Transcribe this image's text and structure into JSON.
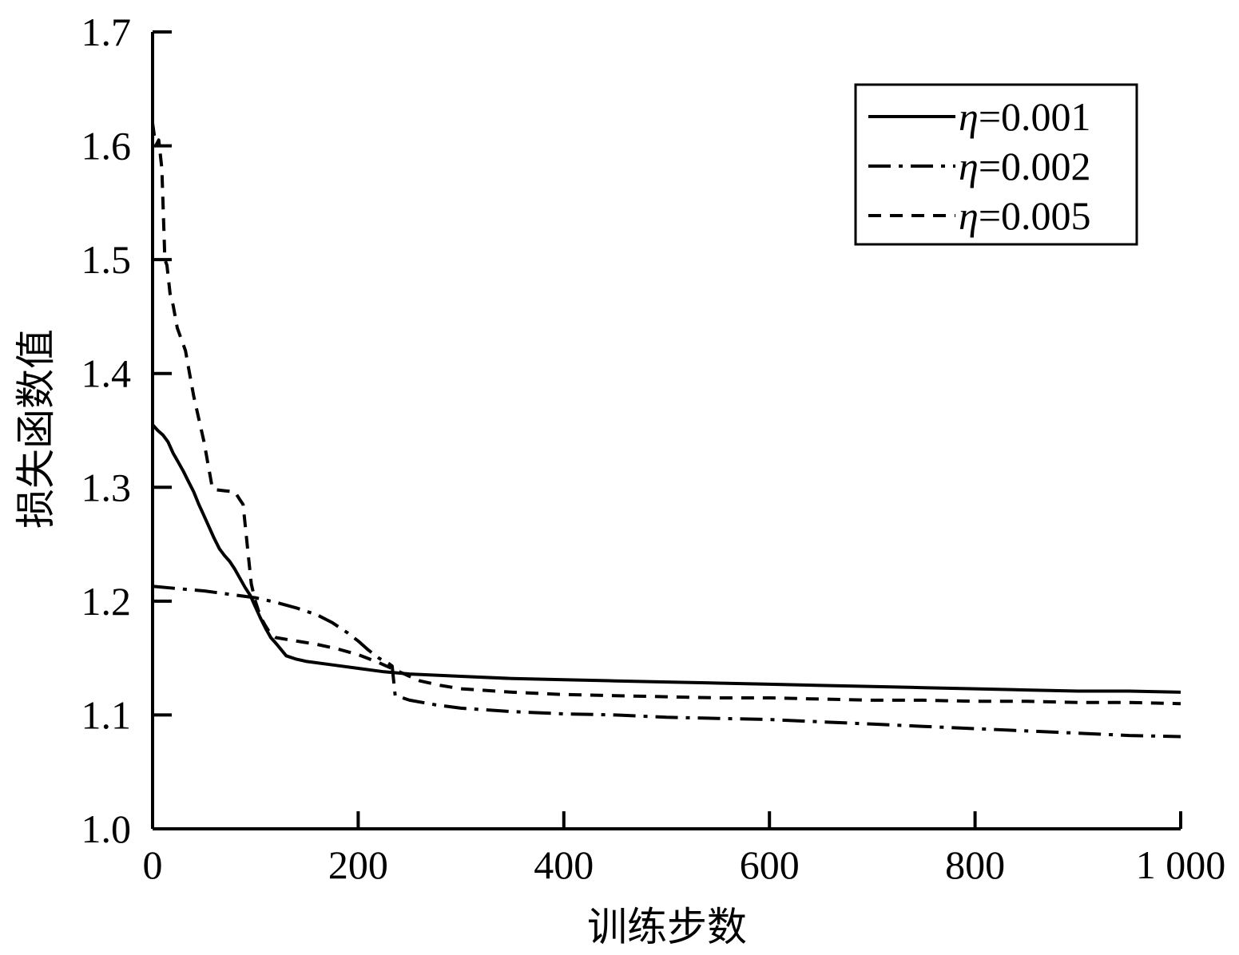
{
  "chart_data": {
    "type": "line",
    "xlabel": "训练步数",
    "ylabel": "损失函数值",
    "xlim": [
      0,
      1000
    ],
    "ylim": [
      1.0,
      1.7
    ],
    "xticks": [
      0,
      200,
      400,
      600,
      800,
      1000
    ],
    "xtick_labels": [
      "0",
      "200",
      "400",
      "600",
      "800",
      "1 000"
    ],
    "yticks": [
      1.0,
      1.1,
      1.2,
      1.3,
      1.4,
      1.5,
      1.6,
      1.7
    ],
    "ytick_labels": [
      "1.0",
      "1.1",
      "1.2",
      "1.3",
      "1.4",
      "1.5",
      "1.6",
      "1.7"
    ],
    "grid": false,
    "legend_position": "top-right",
    "series": [
      {
        "name": "η=0.001",
        "symbol": "η",
        "value_label": "=0.001",
        "dash": "solid",
        "x": [
          0,
          5,
          10,
          15,
          20,
          25,
          30,
          35,
          40,
          45,
          50,
          55,
          60,
          65,
          70,
          75,
          80,
          85,
          90,
          95,
          100,
          105,
          110,
          115,
          120,
          130,
          140,
          150,
          175,
          200,
          225,
          250,
          300,
          350,
          400,
          450,
          500,
          550,
          600,
          650,
          700,
          750,
          800,
          850,
          900,
          950,
          1000
        ],
        "y": [
          1.355,
          1.35,
          1.346,
          1.34,
          1.33,
          1.322,
          1.314,
          1.305,
          1.296,
          1.285,
          1.275,
          1.265,
          1.255,
          1.246,
          1.24,
          1.235,
          1.228,
          1.22,
          1.212,
          1.205,
          1.195,
          1.185,
          1.176,
          1.168,
          1.163,
          1.152,
          1.149,
          1.147,
          1.144,
          1.141,
          1.138,
          1.136,
          1.134,
          1.132,
          1.131,
          1.13,
          1.129,
          1.128,
          1.127,
          1.126,
          1.125,
          1.124,
          1.123,
          1.122,
          1.121,
          1.121,
          1.12
        ]
      },
      {
        "name": "η=0.002",
        "symbol": "η",
        "value_label": "=0.002",
        "dash": "dashdot",
        "x": [
          0,
          25,
          50,
          75,
          100,
          120,
          140,
          160,
          175,
          190,
          200,
          210,
          220,
          230,
          233,
          236,
          240,
          250,
          275,
          300,
          350,
          400,
          450,
          500,
          550,
          600,
          650,
          700,
          750,
          800,
          850,
          900,
          950,
          1000
        ],
        "y": [
          1.213,
          1.211,
          1.209,
          1.206,
          1.203,
          1.199,
          1.194,
          1.188,
          1.181,
          1.172,
          1.165,
          1.157,
          1.15,
          1.145,
          1.143,
          1.117,
          1.116,
          1.113,
          1.109,
          1.106,
          1.103,
          1.101,
          1.1,
          1.098,
          1.097,
          1.096,
          1.094,
          1.092,
          1.09,
          1.088,
          1.086,
          1.084,
          1.082,
          1.081
        ]
      },
      {
        "name": "η=0.005",
        "symbol": "η",
        "value_label": "=0.005",
        "dash": "dashed",
        "x": [
          0,
          3,
          6,
          9,
          12,
          14,
          17,
          20,
          24,
          28,
          32,
          36,
          40,
          45,
          50,
          54,
          56,
          58,
          60,
          70,
          80,
          85,
          88,
          92,
          96,
          100,
          105,
          110,
          115,
          120,
          140,
          160,
          180,
          200,
          220,
          240,
          260,
          280,
          300,
          350,
          400,
          450,
          500,
          550,
          600,
          650,
          700,
          750,
          800,
          850,
          900,
          950,
          1000
        ],
        "y": [
          1.62,
          1.6,
          1.605,
          1.58,
          1.5,
          1.495,
          1.47,
          1.46,
          1.44,
          1.43,
          1.42,
          1.4,
          1.38,
          1.36,
          1.34,
          1.32,
          1.31,
          1.3,
          1.298,
          1.297,
          1.296,
          1.289,
          1.285,
          1.25,
          1.215,
          1.2,
          1.186,
          1.178,
          1.171,
          1.168,
          1.165,
          1.162,
          1.158,
          1.153,
          1.146,
          1.138,
          1.13,
          1.126,
          1.123,
          1.12,
          1.118,
          1.117,
          1.116,
          1.115,
          1.115,
          1.114,
          1.113,
          1.113,
          1.112,
          1.112,
          1.111,
          1.111,
          1.11
        ]
      }
    ]
  }
}
